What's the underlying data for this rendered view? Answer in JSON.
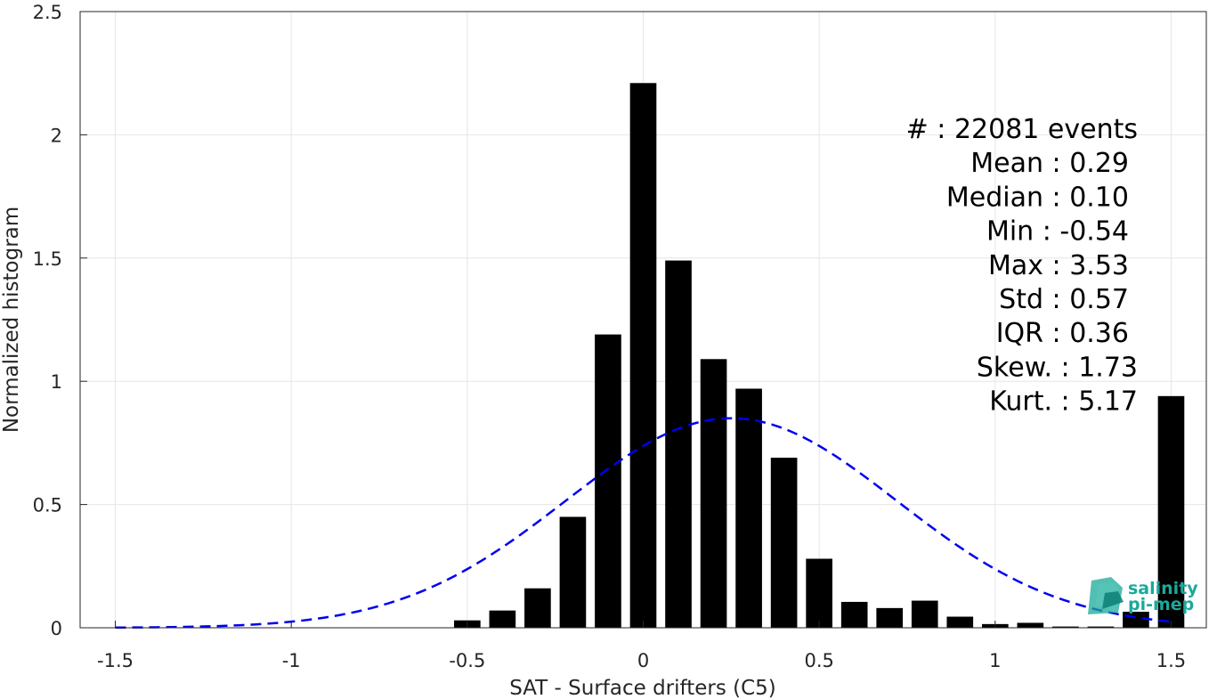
{
  "chart_data": {
    "type": "bar",
    "xlabel": "SAT - Surface drifters (C5)",
    "ylabel": "Normalized histogram",
    "xlim": [
      -1.6,
      1.6
    ],
    "ylim": [
      0,
      2.5
    ],
    "xticks": [
      -1.5,
      -1,
      -0.5,
      0,
      0.5,
      1,
      1.5
    ],
    "xtick_labels": [
      "-1.5",
      "-1",
      "-0.5",
      "0",
      "0.5",
      "1",
      "1.5"
    ],
    "yticks": [
      0,
      0.5,
      1,
      1.5,
      2,
      2.5
    ],
    "ytick_labels": [
      "0",
      "0.5",
      "1",
      "1.5",
      "2",
      "2.5"
    ],
    "grid": true,
    "bar_color": "#000000",
    "bar_width": 0.075,
    "bins": [
      {
        "x": -0.5,
        "value": 0.03
      },
      {
        "x": -0.4,
        "value": 0.07
      },
      {
        "x": -0.3,
        "value": 0.16
      },
      {
        "x": -0.2,
        "value": 0.45
      },
      {
        "x": -0.1,
        "value": 1.19
      },
      {
        "x": 0.0,
        "value": 2.21
      },
      {
        "x": 0.1,
        "value": 1.49
      },
      {
        "x": 0.2,
        "value": 1.09
      },
      {
        "x": 0.3,
        "value": 0.97
      },
      {
        "x": 0.4,
        "value": 0.69
      },
      {
        "x": 0.5,
        "value": 0.28
      },
      {
        "x": 0.6,
        "value": 0.105
      },
      {
        "x": 0.7,
        "value": 0.08
      },
      {
        "x": 0.8,
        "value": 0.11
      },
      {
        "x": 0.9,
        "value": 0.045
      },
      {
        "x": 1.0,
        "value": 0.015
      },
      {
        "x": 1.1,
        "value": 0.02
      },
      {
        "x": 1.2,
        "value": 0.005
      },
      {
        "x": 1.3,
        "value": 0.005
      },
      {
        "x": 1.4,
        "value": 0.065
      },
      {
        "x": 1.5,
        "value": 0.94
      }
    ],
    "fit_curve": {
      "type": "gaussian",
      "style": "dashed",
      "color": "#0000ee",
      "mean": 0.25,
      "std": 0.47,
      "peak": 0.85,
      "x_range": [
        -1.5,
        1.5
      ]
    }
  },
  "stats": [
    {
      "label": "#  : 22081 events"
    },
    {
      "label": "Mean : 0.29"
    },
    {
      "label": "Median : 0.10"
    },
    {
      "label": "Min : -0.54"
    },
    {
      "label": "Max : 3.53"
    },
    {
      "label": "Std : 0.57"
    },
    {
      "label": "IQR : 0.36"
    },
    {
      "label": "Skew. : 1.73"
    },
    {
      "label": "Kurt. : 5.17"
    }
  ],
  "logo": {
    "line1": "salinity",
    "line2": "pi-mep",
    "color": "#1aa99a"
  }
}
